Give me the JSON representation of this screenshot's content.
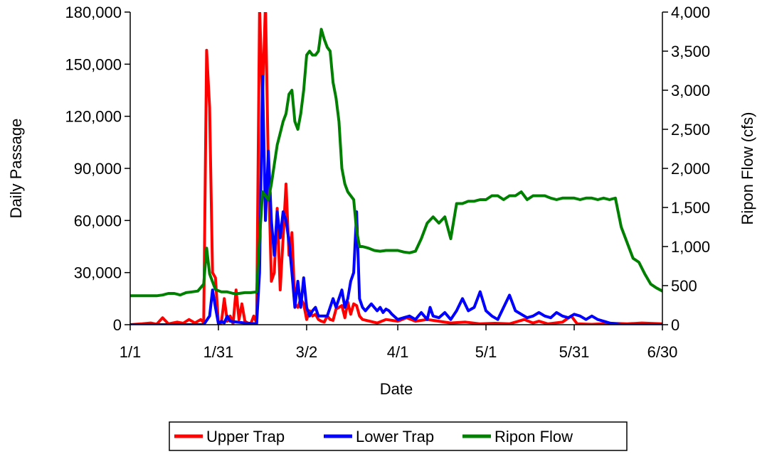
{
  "chart_data": {
    "type": "line",
    "title": "",
    "xlabel": "Date",
    "ylabel_left": "Daily Passage",
    "ylabel_right": "Ripon Flow (cfs)",
    "x_unit": "day of year (1/1 = 1)",
    "x_range": [
      1,
      182
    ],
    "x_ticks": [
      {
        "day": 1,
        "label": "1/1"
      },
      {
        "day": 31,
        "label": "1/31"
      },
      {
        "day": 61,
        "label": "3/2"
      },
      {
        "day": 92,
        "label": "4/1"
      },
      {
        "day": 122,
        "label": "5/1"
      },
      {
        "day": 152,
        "label": "5/31"
      },
      {
        "day": 182,
        "label": "6/30"
      }
    ],
    "y_left": {
      "min": 0,
      "max": 180000,
      "ticks": [
        0,
        30000,
        60000,
        90000,
        120000,
        150000,
        180000
      ],
      "tick_labels": [
        "0",
        "30,000",
        "60,000",
        "90,000",
        "120,000",
        "150,000",
        "180,000"
      ]
    },
    "y_right": {
      "min": 0,
      "max": 4000,
      "ticks": [
        0,
        500,
        1000,
        1500,
        2000,
        2500,
        3000,
        3500,
        4000
      ],
      "tick_labels": [
        "0",
        "500",
        "1,000",
        "1,500",
        "2,000",
        "2,500",
        "3,000",
        "3,500",
        "4,000"
      ]
    },
    "grid": false,
    "legend_position": "bottom",
    "series": [
      {
        "name": "Upper Trap",
        "axis": "left",
        "color": "#ff0000",
        "points": [
          [
            1,
            0
          ],
          [
            5,
            500
          ],
          [
            8,
            1000
          ],
          [
            10,
            300
          ],
          [
            12,
            4000
          ],
          [
            14,
            500
          ],
          [
            17,
            1500
          ],
          [
            19,
            800
          ],
          [
            21,
            3000
          ],
          [
            23,
            1000
          ],
          [
            25,
            3000
          ],
          [
            26,
            1200
          ],
          [
            27,
            158000
          ],
          [
            28,
            125000
          ],
          [
            29,
            30000
          ],
          [
            30,
            27000
          ],
          [
            31,
            500
          ],
          [
            32,
            1000
          ],
          [
            33,
            15000
          ],
          [
            34,
            2000
          ],
          [
            35,
            5000
          ],
          [
            36,
            500
          ],
          [
            37,
            20000
          ],
          [
            38,
            3000
          ],
          [
            39,
            12000
          ],
          [
            40,
            2000
          ],
          [
            41,
            1000
          ],
          [
            42,
            500
          ],
          [
            43,
            5000
          ],
          [
            44,
            1000
          ],
          [
            45,
            182000
          ],
          [
            46,
            130000
          ],
          [
            47,
            185000
          ],
          [
            48,
            90000
          ],
          [
            49,
            25000
          ],
          [
            50,
            30000
          ],
          [
            51,
            67000
          ],
          [
            52,
            20000
          ],
          [
            53,
            50000
          ],
          [
            54,
            81000
          ],
          [
            55,
            40000
          ],
          [
            56,
            53000
          ],
          [
            57,
            12000
          ],
          [
            58,
            10000
          ],
          [
            59,
            15000
          ],
          [
            60,
            12000
          ],
          [
            61,
            3000
          ],
          [
            62,
            8000
          ],
          [
            63,
            5000
          ],
          [
            64,
            6000
          ],
          [
            65,
            3000
          ],
          [
            66,
            2000
          ],
          [
            67,
            1500
          ],
          [
            68,
            5000
          ],
          [
            69,
            3000
          ],
          [
            70,
            2500
          ],
          [
            71,
            9000
          ],
          [
            72,
            10000
          ],
          [
            73,
            11000
          ],
          [
            74,
            4000
          ],
          [
            75,
            13000
          ],
          [
            76,
            6000
          ],
          [
            77,
            12000
          ],
          [
            78,
            11000
          ],
          [
            79,
            5000
          ],
          [
            80,
            3000
          ],
          [
            85,
            1000
          ],
          [
            88,
            3000
          ],
          [
            92,
            2000
          ],
          [
            95,
            4000
          ],
          [
            98,
            2000
          ],
          [
            102,
            3000
          ],
          [
            106,
            2000
          ],
          [
            110,
            1000
          ],
          [
            115,
            1500
          ],
          [
            120,
            500
          ],
          [
            125,
            800
          ],
          [
            130,
            500
          ],
          [
            135,
            3000
          ],
          [
            138,
            1000
          ],
          [
            140,
            2000
          ],
          [
            143,
            500
          ],
          [
            148,
            1500
          ],
          [
            151,
            5000
          ],
          [
            153,
            500
          ],
          [
            158,
            200
          ],
          [
            165,
            800
          ],
          [
            170,
            500
          ],
          [
            175,
            1000
          ],
          [
            182,
            500
          ]
        ]
      },
      {
        "name": "Lower Trap",
        "axis": "left",
        "color": "#0000ff",
        "points": [
          [
            1,
            0
          ],
          [
            26,
            0
          ],
          [
            28,
            5000
          ],
          [
            29,
            20000
          ],
          [
            30,
            10000
          ],
          [
            31,
            500
          ],
          [
            32,
            2000
          ],
          [
            33,
            1000
          ],
          [
            34,
            5000
          ],
          [
            35,
            2000
          ],
          [
            40,
            1000
          ],
          [
            44,
            500
          ],
          [
            45,
            30000
          ],
          [
            46,
            143000
          ],
          [
            47,
            60000
          ],
          [
            48,
            100000
          ],
          [
            49,
            60000
          ],
          [
            50,
            40000
          ],
          [
            51,
            65000
          ],
          [
            52,
            50000
          ],
          [
            53,
            65000
          ],
          [
            54,
            60000
          ],
          [
            55,
            48000
          ],
          [
            56,
            30000
          ],
          [
            57,
            10000
          ],
          [
            58,
            25000
          ],
          [
            59,
            10000
          ],
          [
            60,
            27000
          ],
          [
            61,
            10000
          ],
          [
            62,
            5000
          ],
          [
            63,
            8000
          ],
          [
            64,
            10000
          ],
          [
            65,
            5000
          ],
          [
            66,
            5000
          ],
          [
            67,
            5000
          ],
          [
            68,
            5000
          ],
          [
            69,
            10000
          ],
          [
            70,
            15000
          ],
          [
            71,
            10000
          ],
          [
            72,
            15000
          ],
          [
            73,
            20000
          ],
          [
            74,
            10000
          ],
          [
            75,
            15000
          ],
          [
            76,
            25000
          ],
          [
            77,
            30000
          ],
          [
            78,
            65000
          ],
          [
            79,
            15000
          ],
          [
            80,
            10000
          ],
          [
            81,
            8000
          ],
          [
            82,
            10000
          ],
          [
            83,
            12000
          ],
          [
            84,
            10000
          ],
          [
            85,
            8000
          ],
          [
            86,
            10000
          ],
          [
            87,
            7000
          ],
          [
            88,
            9000
          ],
          [
            89,
            8000
          ],
          [
            90,
            6000
          ],
          [
            92,
            3000
          ],
          [
            94,
            4000
          ],
          [
            96,
            5000
          ],
          [
            98,
            3000
          ],
          [
            100,
            7000
          ],
          [
            102,
            3000
          ],
          [
            103,
            10000
          ],
          [
            104,
            5000
          ],
          [
            106,
            4000
          ],
          [
            108,
            7000
          ],
          [
            110,
            3000
          ],
          [
            112,
            8000
          ],
          [
            114,
            15000
          ],
          [
            116,
            8000
          ],
          [
            118,
            10000
          ],
          [
            120,
            19000
          ],
          [
            122,
            8000
          ],
          [
            124,
            5000
          ],
          [
            126,
            3000
          ],
          [
            128,
            10000
          ],
          [
            130,
            17000
          ],
          [
            132,
            8000
          ],
          [
            134,
            6000
          ],
          [
            136,
            4000
          ],
          [
            138,
            5000
          ],
          [
            140,
            7000
          ],
          [
            142,
            5000
          ],
          [
            144,
            4000
          ],
          [
            146,
            7000
          ],
          [
            148,
            5000
          ],
          [
            150,
            4000
          ],
          [
            152,
            6000
          ],
          [
            154,
            5000
          ],
          [
            156,
            3000
          ],
          [
            158,
            5000
          ],
          [
            160,
            3000
          ],
          [
            162,
            2000
          ],
          [
            164,
            1000
          ],
          [
            166,
            500
          ],
          [
            168,
            0
          ],
          [
            175,
            0
          ],
          [
            182,
            0
          ]
        ]
      },
      {
        "name": "Ripon Flow",
        "axis": "right",
        "color": "#008000",
        "points": [
          [
            1,
            370
          ],
          [
            5,
            370
          ],
          [
            10,
            370
          ],
          [
            12,
            380
          ],
          [
            14,
            400
          ],
          [
            16,
            400
          ],
          [
            18,
            380
          ],
          [
            20,
            410
          ],
          [
            22,
            420
          ],
          [
            24,
            430
          ],
          [
            26,
            520
          ],
          [
            27,
            980
          ],
          [
            28,
            650
          ],
          [
            30,
            450
          ],
          [
            32,
            420
          ],
          [
            34,
            420
          ],
          [
            36,
            400
          ],
          [
            38,
            400
          ],
          [
            40,
            410
          ],
          [
            42,
            410
          ],
          [
            44,
            420
          ],
          [
            45,
            1100
          ],
          [
            46,
            1700
          ],
          [
            47,
            1650
          ],
          [
            48,
            1600
          ],
          [
            49,
            1800
          ],
          [
            50,
            2050
          ],
          [
            51,
            2300
          ],
          [
            52,
            2450
          ],
          [
            53,
            2600
          ],
          [
            54,
            2700
          ],
          [
            55,
            2950
          ],
          [
            56,
            3000
          ],
          [
            57,
            2600
          ],
          [
            58,
            2500
          ],
          [
            59,
            2700
          ],
          [
            60,
            3000
          ],
          [
            61,
            3450
          ],
          [
            62,
            3500
          ],
          [
            63,
            3450
          ],
          [
            64,
            3450
          ],
          [
            65,
            3500
          ],
          [
            66,
            3780
          ],
          [
            67,
            3650
          ],
          [
            68,
            3550
          ],
          [
            69,
            3500
          ],
          [
            70,
            3100
          ],
          [
            71,
            2900
          ],
          [
            72,
            2600
          ],
          [
            73,
            2000
          ],
          [
            74,
            1800
          ],
          [
            75,
            1700
          ],
          [
            76,
            1650
          ],
          [
            77,
            1600
          ],
          [
            78,
            1200
          ],
          [
            79,
            1000
          ],
          [
            80,
            1000
          ],
          [
            82,
            980
          ],
          [
            84,
            950
          ],
          [
            86,
            940
          ],
          [
            88,
            950
          ],
          [
            90,
            950
          ],
          [
            92,
            950
          ],
          [
            94,
            930
          ],
          [
            96,
            920
          ],
          [
            98,
            940
          ],
          [
            100,
            1100
          ],
          [
            102,
            1300
          ],
          [
            104,
            1380
          ],
          [
            106,
            1300
          ],
          [
            108,
            1380
          ],
          [
            110,
            1100
          ],
          [
            112,
            1550
          ],
          [
            114,
            1550
          ],
          [
            116,
            1580
          ],
          [
            118,
            1580
          ],
          [
            120,
            1600
          ],
          [
            122,
            1600
          ],
          [
            124,
            1650
          ],
          [
            126,
            1650
          ],
          [
            128,
            1600
          ],
          [
            130,
            1650
          ],
          [
            132,
            1650
          ],
          [
            134,
            1700
          ],
          [
            136,
            1600
          ],
          [
            138,
            1650
          ],
          [
            140,
            1650
          ],
          [
            142,
            1650
          ],
          [
            144,
            1620
          ],
          [
            146,
            1600
          ],
          [
            148,
            1620
          ],
          [
            150,
            1620
          ],
          [
            152,
            1620
          ],
          [
            154,
            1600
          ],
          [
            156,
            1620
          ],
          [
            158,
            1620
          ],
          [
            160,
            1600
          ],
          [
            162,
            1620
          ],
          [
            164,
            1600
          ],
          [
            166,
            1620
          ],
          [
            168,
            1250
          ],
          [
            170,
            1050
          ],
          [
            172,
            850
          ],
          [
            174,
            800
          ],
          [
            176,
            650
          ],
          [
            178,
            520
          ],
          [
            180,
            470
          ],
          [
            182,
            430
          ]
        ]
      }
    ]
  },
  "legend": {
    "items": [
      {
        "label": "Upper Trap",
        "color": "#ff0000"
      },
      {
        "label": "Lower Trap",
        "color": "#0000ff"
      },
      {
        "label": "Ripon Flow",
        "color": "#008000"
      }
    ]
  }
}
